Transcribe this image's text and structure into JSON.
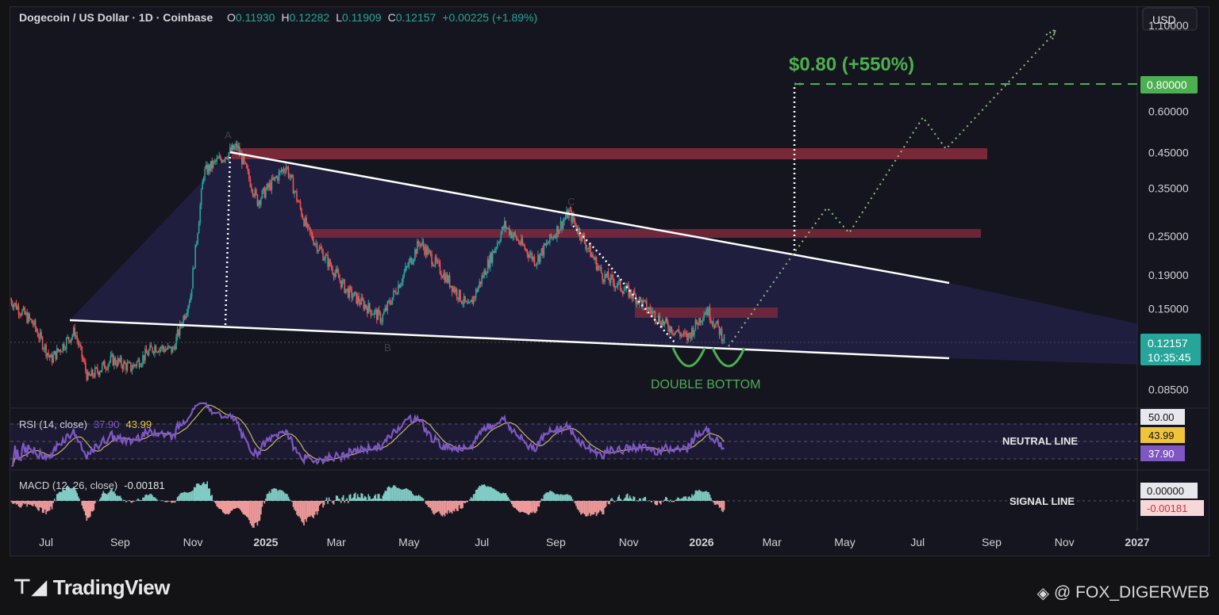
{
  "header": {
    "symbol": "Dogecoin / US Dollar · 1D · Coinbase",
    "o_label": "O",
    "o_value": "0.11930",
    "h_label": "H",
    "h_value": "0.12282",
    "l_label": "L",
    "l_value": "0.11909",
    "c_label": "C",
    "c_value": "0.12157",
    "change": "+0.00225 (+1.89%)"
  },
  "currency_button": "USD",
  "price_axis": {
    "ticks": [
      "1.10000",
      "0.80000",
      "0.60000",
      "0.45000",
      "0.35000",
      "0.25000",
      "0.19000",
      "0.15000",
      "0.08500"
    ],
    "target_label": "0.80000",
    "current_price": "0.12157",
    "countdown": "10:35:45"
  },
  "time_axis": [
    "Jul",
    "Sep",
    "Nov",
    "2025",
    "Mar",
    "May",
    "Jul",
    "Sep",
    "Nov",
    "2026",
    "Mar",
    "May",
    "Jul",
    "Sep",
    "Nov",
    "2027"
  ],
  "annotations": {
    "target": "$0.80 (+550%)",
    "pattern": "DOUBLE BOTTOM",
    "point_a": "A",
    "point_b": "B",
    "point_c": "C",
    "neutral_line": "NEUTRAL LINE",
    "signal_line": "SIGNAL LINE"
  },
  "rsi": {
    "label": "RSI (14, close)",
    "value": "37.90",
    "ma_value": "43.99",
    "level_50": "50.00"
  },
  "macd": {
    "label": "MACD (12, 26, close)",
    "value": "-0.00181",
    "zero_label": "0.00000"
  },
  "footer": {
    "brand": "TradingView",
    "watermark": "@ FOX_DIGERWEB"
  },
  "colors": {
    "background": "#15151f",
    "up": "#26a69a",
    "down": "#ef5350",
    "rsi": "#7e57c2",
    "target": "#4caf50",
    "resistance": "#8a2b3c"
  },
  "chart_data": {
    "type": "candlestick",
    "title": "Dogecoin / US Dollar · 1D · Coinbase",
    "y_scale": "log",
    "ylim": [
      0.075,
      1.25
    ],
    "x_range": [
      "2024-06",
      "2027-01"
    ],
    "price_path": [
      {
        "t": "2024-06-01",
        "p": 0.16
      },
      {
        "t": "2024-06-20",
        "p": 0.135
      },
      {
        "t": "2024-07-05",
        "p": 0.105
      },
      {
        "t": "2024-07-25",
        "p": 0.128
      },
      {
        "t": "2024-08-05",
        "p": 0.092
      },
      {
        "t": "2024-08-25",
        "p": 0.105
      },
      {
        "t": "2024-09-10",
        "p": 0.099
      },
      {
        "t": "2024-09-30",
        "p": 0.115
      },
      {
        "t": "2024-10-15",
        "p": 0.112
      },
      {
        "t": "2024-10-30",
        "p": 0.165
      },
      {
        "t": "2024-11-10",
        "p": 0.39
      },
      {
        "t": "2024-11-20",
        "p": 0.42
      },
      {
        "t": "2024-12-08",
        "p": 0.47
      },
      {
        "t": "2024-12-25",
        "p": 0.32
      },
      {
        "t": "2025-01-18",
        "p": 0.41
      },
      {
        "t": "2025-02-05",
        "p": 0.26
      },
      {
        "t": "2025-03-10",
        "p": 0.17
      },
      {
        "t": "2025-04-08",
        "p": 0.14
      },
      {
        "t": "2025-05-10",
        "p": 0.24
      },
      {
        "t": "2025-06-20",
        "p": 0.15
      },
      {
        "t": "2025-07-20",
        "p": 0.27
      },
      {
        "t": "2025-08-15",
        "p": 0.21
      },
      {
        "t": "2025-09-12",
        "p": 0.295
      },
      {
        "t": "2025-10-10",
        "p": 0.19
      },
      {
        "t": "2025-11-05",
        "p": 0.165
      },
      {
        "t": "2025-12-01",
        "p": 0.135
      },
      {
        "t": "2025-12-20",
        "p": 0.122
      },
      {
        "t": "2026-01-05",
        "p": 0.15
      },
      {
        "t": "2026-01-20",
        "p": 0.12157
      }
    ],
    "projection_path": [
      {
        "t": "2026-01-20",
        "p": 0.121
      },
      {
        "t": "2026-03-15",
        "p": 0.23
      },
      {
        "t": "2026-04-25",
        "p": 0.33
      },
      {
        "t": "2026-05-10",
        "p": 0.27
      },
      {
        "t": "2026-07-15",
        "p": 0.62
      },
      {
        "t": "2026-08-05",
        "p": 0.5
      },
      {
        "t": "2026-11-10",
        "p": 1.15
      }
    ],
    "falling_wedge": {
      "upper": [
        {
          "t": "2024-11-20",
          "p": 0.48
        },
        {
          "t": "2026-08-20",
          "p": 0.185
        }
      ],
      "lower": [
        {
          "t": "2024-07-10",
          "p": 0.142
        },
        {
          "t": "2026-08-20",
          "p": 0.109
        }
      ]
    },
    "resistance_zones": [
      {
        "from": 0.46,
        "to": 0.5,
        "x_end": "2026-09"
      },
      {
        "from": 0.265,
        "to": 0.285,
        "x_end": "2026-09"
      },
      {
        "from": 0.145,
        "to": 0.157,
        "x_end": "2026-03"
      }
    ],
    "target_price": 0.8,
    "target_label": "$0.80 (+550%)",
    "pattern": "DOUBLE BOTTOM",
    "current_price": 0.12157,
    "rsi": {
      "period": 14,
      "value": 37.9,
      "ma": 43.99,
      "neutral": 50.0
    },
    "macd": {
      "fast": 12,
      "slow": 26,
      "value": -0.00181,
      "signal": 0.0
    }
  }
}
